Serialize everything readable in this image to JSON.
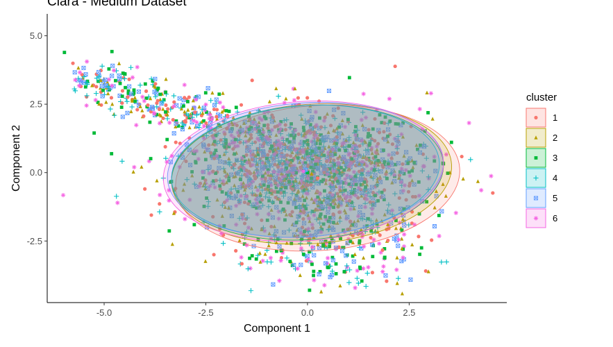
{
  "chart_data": {
    "type": "scatter",
    "title": "Clara - Medium Dataset",
    "xlabel": "Component 1",
    "ylabel": "Component 2",
    "xlim": [
      -6.4,
      4.9
    ],
    "ylim": [
      -4.75,
      5.8
    ],
    "x_ticks": [
      {
        "value": -5.0,
        "label": "-5.0"
      },
      {
        "value": -2.5,
        "label": "-2.5"
      },
      {
        "value": 0.0,
        "label": "0.0"
      },
      {
        "value": 2.5,
        "label": "2.5"
      }
    ],
    "y_ticks": [
      {
        "value": -2.5,
        "label": "-2.5"
      },
      {
        "value": 0.0,
        "label": "0.0"
      },
      {
        "value": 2.5,
        "label": "2.5"
      },
      {
        "value": 5.0,
        "label": "5.0"
      }
    ],
    "grid": false,
    "legend": {
      "title": "cluster",
      "position": "right"
    },
    "series": [
      {
        "name": "1",
        "color": "#F8766D",
        "shape": "circle",
        "center": [
          0.25,
          -0.2
        ],
        "ellipse": {
          "rx": 3.5,
          "ry": 2.65
        }
      },
      {
        "name": "2",
        "color": "#B79F00",
        "shape": "triangle",
        "center": [
          0.1,
          -0.05
        ],
        "ellipse": {
          "rx": 3.45,
          "ry": 2.55
        }
      },
      {
        "name": "3",
        "color": "#00BA38",
        "shape": "square",
        "center": [
          0.0,
          0.0
        ],
        "ellipse": {
          "rx": 3.35,
          "ry": 2.45
        }
      },
      {
        "name": "4",
        "color": "#00BFC4",
        "shape": "plus",
        "center": [
          -0.05,
          0.05
        ],
        "ellipse": {
          "rx": 3.3,
          "ry": 2.4
        }
      },
      {
        "name": "5",
        "color": "#619CFF",
        "shape": "boxx",
        "center": [
          -0.05,
          0.1
        ],
        "ellipse": {
          "rx": 3.4,
          "ry": 2.45
        }
      },
      {
        "name": "6",
        "color": "#F564E3",
        "shape": "asterisk",
        "center": [
          -0.1,
          0.05
        ],
        "ellipse": {
          "rx": 3.45,
          "ry": 2.55
        }
      }
    ]
  }
}
